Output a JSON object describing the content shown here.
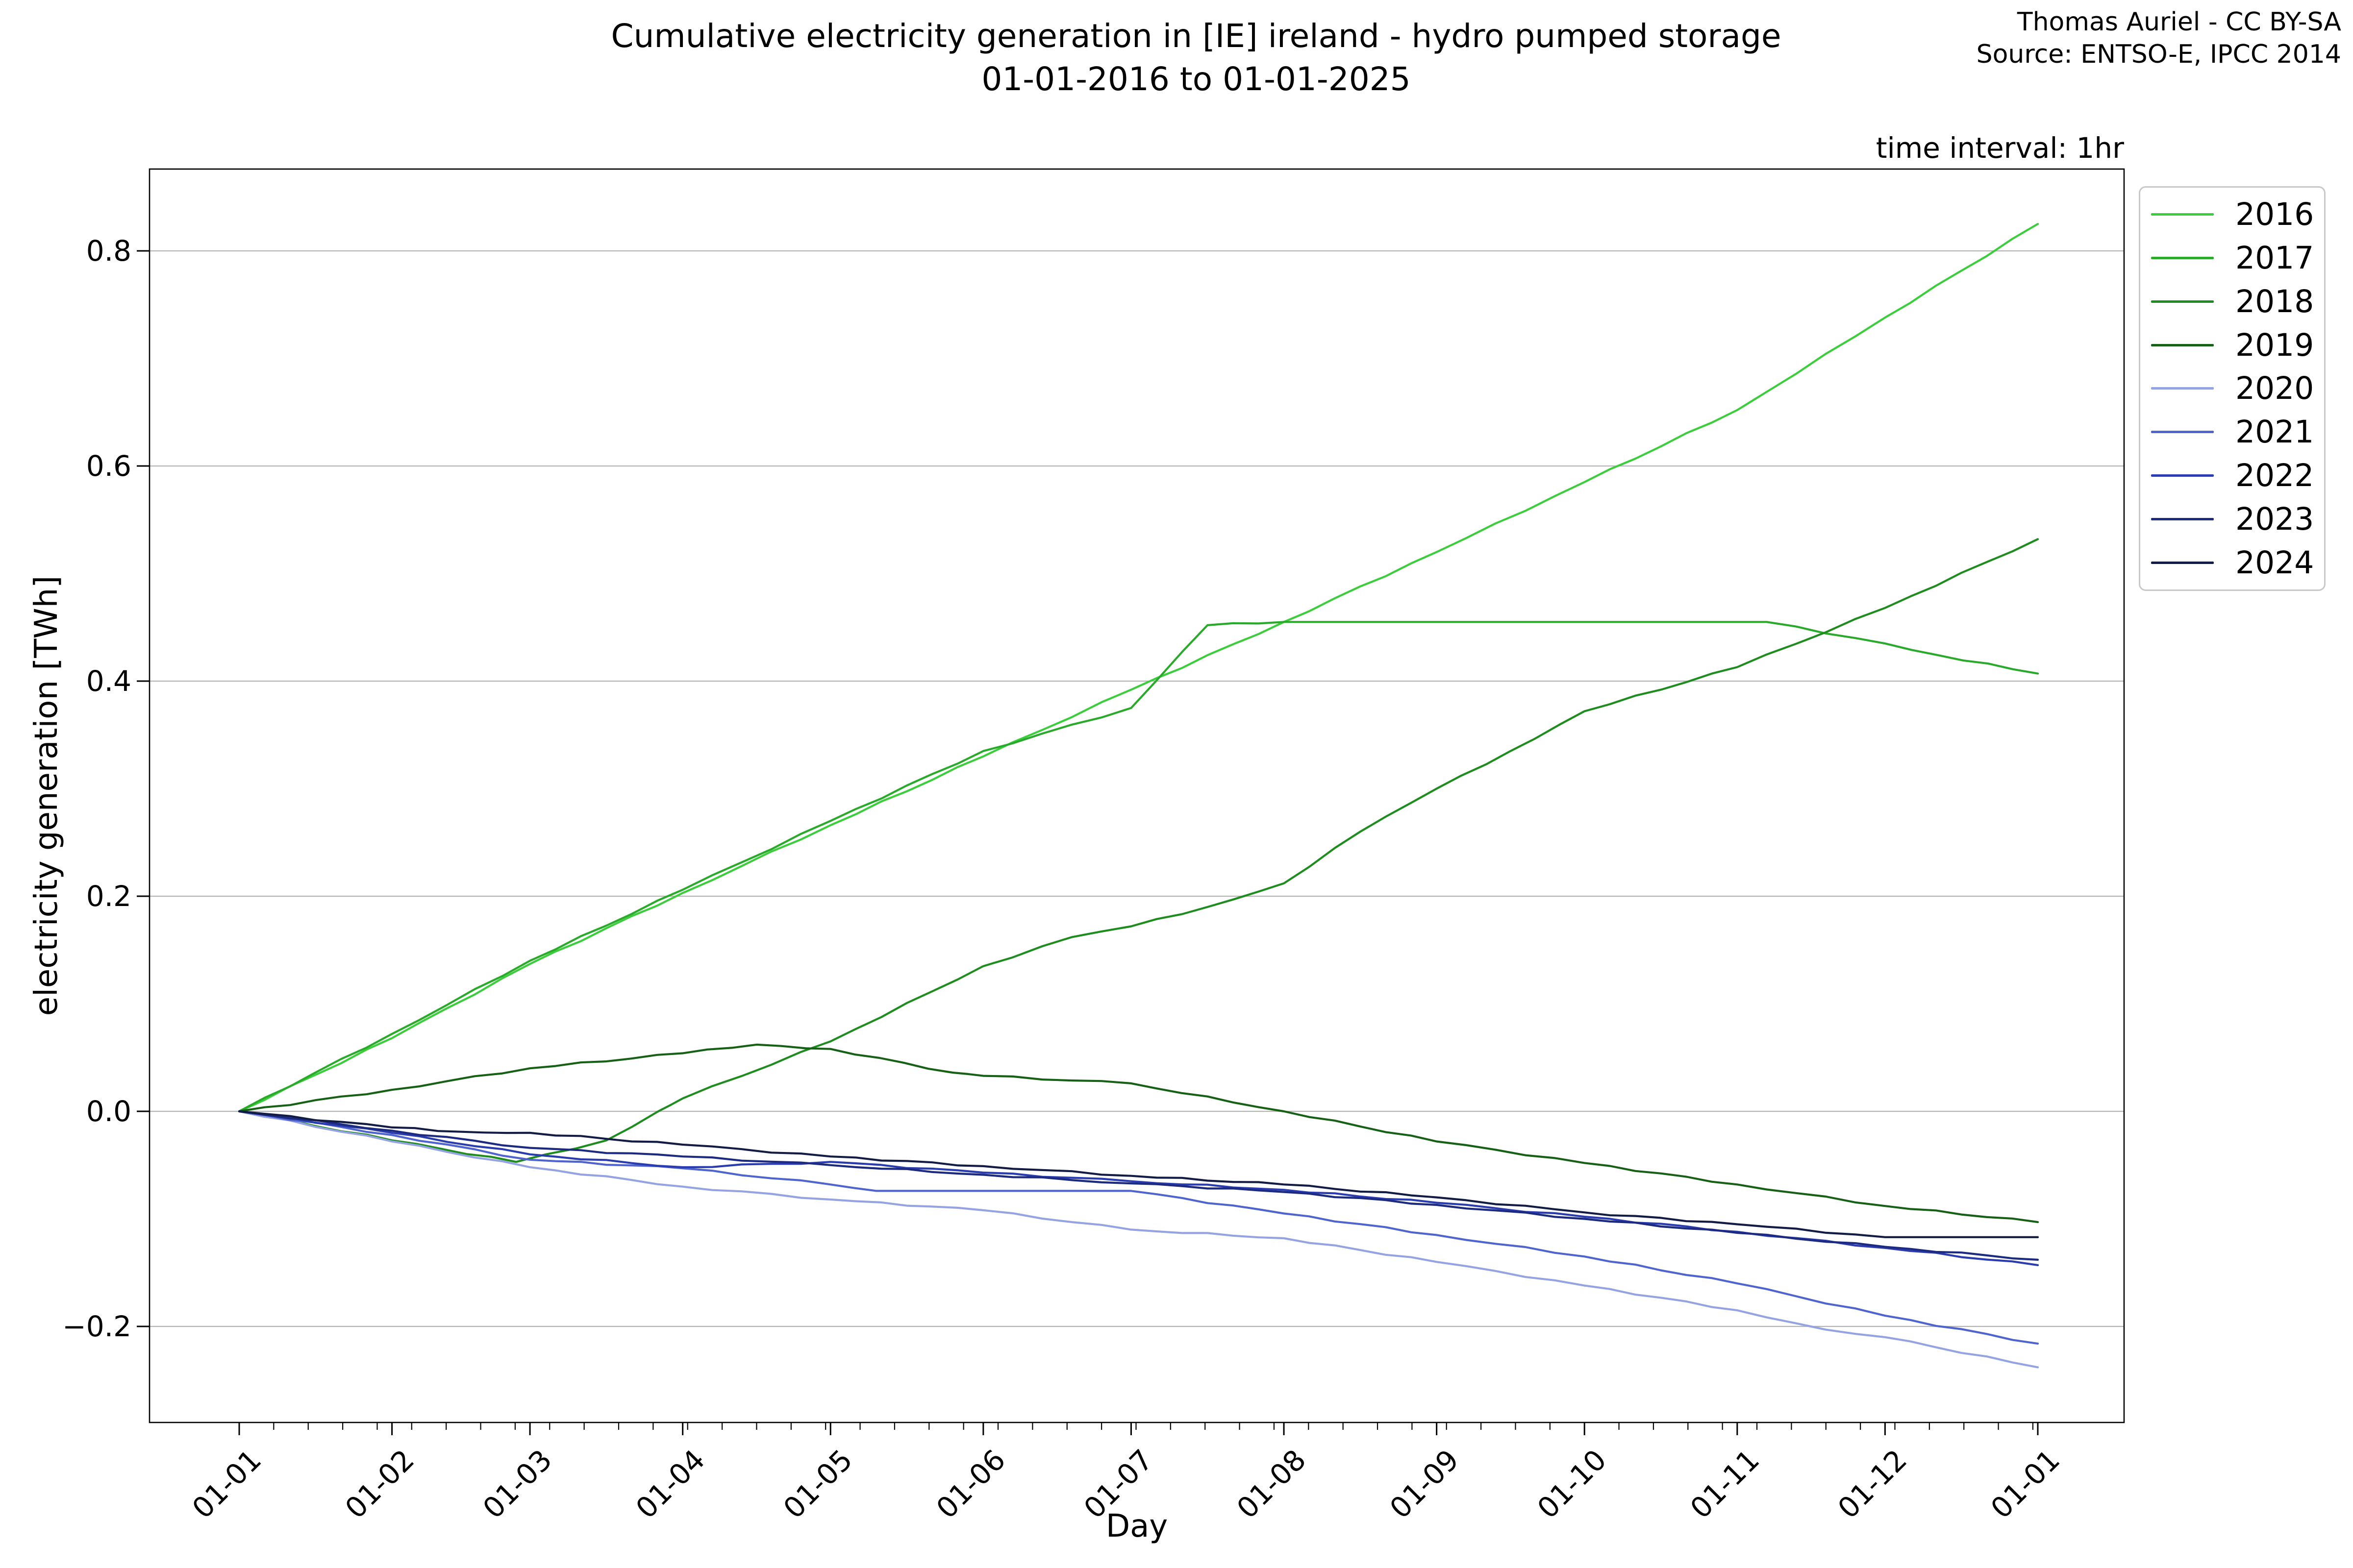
{
  "figure": {
    "title_line1": "Cumulative electricity generation in [IE] ireland - hydro pumped storage",
    "title_line2": "01-01-2016 to 01-01-2025",
    "attribution_line1": "Thomas Auriel - CC BY-SA",
    "attribution_line2": "Source: ENTSO-E, IPCC 2014",
    "time_interval_note": "time interval: 1hr",
    "background_color": "#ffffff"
  },
  "chart_data": {
    "type": "line",
    "title": "Cumulative electricity generation in [IE] ireland - hydro pumped storage 01-01-2016 to 01-01-2025",
    "xlabel": "Day",
    "ylabel": "electricity generation [TWh]",
    "x_tick_labels": [
      "01-01",
      "01-02",
      "01-03",
      "01-04",
      "01-05",
      "01-06",
      "01-07",
      "01-08",
      "01-09",
      "01-10",
      "01-11",
      "01-12",
      "01-01"
    ],
    "y_ticks": [
      0.8,
      0.6,
      0.4,
      0.2,
      0.0,
      -0.2
    ],
    "y_tick_labels": [
      "0.8",
      "0.6",
      "0.4",
      "0.2",
      "0.0",
      "−0.2"
    ],
    "ylim": [
      -0.29,
      0.877
    ],
    "xlim_months": [
      -0.6,
      12.6
    ],
    "grid": "horizontal-only",
    "grid_color": "#b4b4b4",
    "axis_color": "#000000",
    "legend_border_color": "#c8c8c8",
    "legend_position": "outside-upper-right",
    "units": "TWh",
    "series": [
      {
        "name": "2016",
        "color": "#3bcd3b",
        "points": [
          [
            0,
            0
          ],
          [
            1,
            0.068
          ],
          [
            2,
            0.137
          ],
          [
            3,
            0.203
          ],
          [
            4,
            0.266
          ],
          [
            5,
            0.33
          ],
          [
            6,
            0.392
          ],
          [
            7,
            0.455
          ],
          [
            8,
            0.52
          ],
          [
            9,
            0.585
          ],
          [
            10,
            0.652
          ],
          [
            11,
            0.738
          ],
          [
            12,
            0.825
          ]
        ]
      },
      {
        "name": "2017",
        "color": "#2aaa2a",
        "points": [
          [
            0,
            0
          ],
          [
            1,
            0.072
          ],
          [
            2,
            0.14
          ],
          [
            3,
            0.206
          ],
          [
            4,
            0.27
          ],
          [
            5,
            0.335
          ],
          [
            6,
            0.375
          ],
          [
            6.5,
            0.452
          ],
          [
            7,
            0.455
          ],
          [
            8,
            0.455
          ],
          [
            9,
            0.455
          ],
          [
            10.2,
            0.455
          ],
          [
            11,
            0.435
          ],
          [
            11.35,
            0.424
          ],
          [
            12,
            0.407
          ]
        ]
      },
      {
        "name": "2018",
        "color": "#1e8c1e",
        "points": [
          [
            0,
            0
          ],
          [
            1,
            -0.027
          ],
          [
            1.9,
            -0.047
          ],
          [
            2.5,
            -0.027
          ],
          [
            2.84,
            0
          ],
          [
            3,
            0.012
          ],
          [
            4,
            0.065
          ],
          [
            5,
            0.135
          ],
          [
            5.6,
            0.162
          ],
          [
            6,
            0.172
          ],
          [
            6.5,
            0.19
          ],
          [
            7,
            0.212
          ],
          [
            7.5,
            0.26
          ],
          [
            8,
            0.3
          ],
          [
            8.5,
            0.335
          ],
          [
            9,
            0.372
          ],
          [
            10,
            0.413
          ],
          [
            11,
            0.468
          ],
          [
            12,
            0.532
          ]
        ]
      },
      {
        "name": "2019",
        "color": "#176117",
        "points": [
          [
            0,
            0
          ],
          [
            1,
            0.02
          ],
          [
            2,
            0.04
          ],
          [
            3,
            0.054
          ],
          [
            3.5,
            0.062
          ],
          [
            4,
            0.058
          ],
          [
            4.8,
            0.036
          ],
          [
            5,
            0.033
          ],
          [
            6,
            0.026
          ],
          [
            7,
            0
          ],
          [
            8,
            -0.028
          ],
          [
            9,
            -0.048
          ],
          [
            10,
            -0.068
          ],
          [
            11,
            -0.088
          ],
          [
            12,
            -0.103
          ]
        ]
      },
      {
        "name": "2020",
        "color": "#95a3e3",
        "points": [
          [
            0,
            0
          ],
          [
            1,
            -0.028
          ],
          [
            2,
            -0.052
          ],
          [
            3,
            -0.07
          ],
          [
            4,
            -0.082
          ],
          [
            5,
            -0.092
          ],
          [
            6,
            -0.11
          ],
          [
            7,
            -0.118
          ],
          [
            8,
            -0.14
          ],
          [
            9,
            -0.162
          ],
          [
            10,
            -0.185
          ],
          [
            10.6,
            -0.203
          ],
          [
            11,
            -0.21
          ],
          [
            12,
            -0.238
          ]
        ]
      },
      {
        "name": "2021",
        "color": "#5064d0",
        "points": [
          [
            0,
            0
          ],
          [
            1,
            -0.022
          ],
          [
            2,
            -0.045
          ],
          [
            3,
            -0.053
          ],
          [
            4,
            -0.068
          ],
          [
            4.3,
            -0.074
          ],
          [
            6,
            -0.074
          ],
          [
            7,
            -0.095
          ],
          [
            8,
            -0.115
          ],
          [
            9,
            -0.135
          ],
          [
            10,
            -0.16
          ],
          [
            11,
            -0.19
          ],
          [
            12,
            -0.216
          ]
        ]
      },
      {
        "name": "2022",
        "color": "#2b3cae",
        "points": [
          [
            0,
            0
          ],
          [
            1,
            -0.02
          ],
          [
            2,
            -0.04
          ],
          [
            3,
            -0.052
          ],
          [
            4,
            -0.047
          ],
          [
            5,
            -0.057
          ],
          [
            6,
            -0.065
          ],
          [
            7,
            -0.073
          ],
          [
            8,
            -0.085
          ],
          [
            9,
            -0.098
          ],
          [
            10,
            -0.112
          ],
          [
            11,
            -0.127
          ],
          [
            12,
            -0.143
          ]
        ]
      },
      {
        "name": "2023",
        "color": "#1c2a80",
        "points": [
          [
            0,
            0
          ],
          [
            1,
            -0.018
          ],
          [
            2,
            -0.034
          ],
          [
            3,
            -0.042
          ],
          [
            4,
            -0.05
          ],
          [
            5,
            -0.059
          ],
          [
            6,
            -0.067
          ],
          [
            7,
            -0.075
          ],
          [
            8,
            -0.087
          ],
          [
            9,
            -0.1
          ],
          [
            10,
            -0.113
          ],
          [
            11,
            -0.126
          ],
          [
            12,
            -0.138
          ]
        ]
      },
      {
        "name": "2024",
        "color": "#131c45",
        "points": [
          [
            0,
            0
          ],
          [
            1,
            -0.015
          ],
          [
            1.5,
            -0.019
          ],
          [
            2,
            -0.02
          ],
          [
            3,
            -0.031
          ],
          [
            4,
            -0.042
          ],
          [
            5,
            -0.051
          ],
          [
            6,
            -0.06
          ],
          [
            7,
            -0.068
          ],
          [
            8,
            -0.08
          ],
          [
            9,
            -0.094
          ],
          [
            10,
            -0.105
          ],
          [
            11,
            -0.117
          ],
          [
            12,
            -0.117
          ]
        ]
      }
    ]
  }
}
